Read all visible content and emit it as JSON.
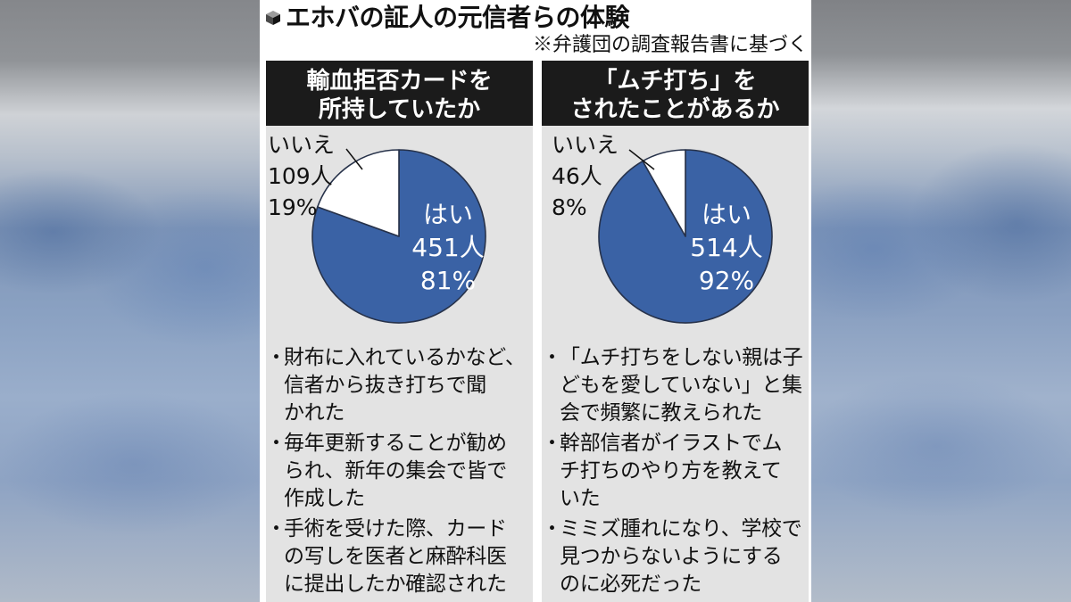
{
  "header": {
    "icon": "cube-icon",
    "title": "エホバの証人の元信者らの体験",
    "source_note": "※弁護団の調査報告書に基づく"
  },
  "colors": {
    "column_header_bg": "#1b1b1b",
    "column_bg": "#e3e3e3",
    "slice_outline": "#27324a"
  },
  "columns": [
    {
      "bullet_marker": "・",
      "bullets": [
        {
          "lines": [
            "財布に入れているかなど、",
            "信者から抜き打ちで聞",
            "かれた"
          ]
        },
        {
          "lines": [
            "毎年更新することが勧め",
            "られ、新年の集会で皆で",
            "作成した"
          ]
        },
        {
          "lines": [
            "手術を受けた際、カード",
            "の写しを医者と麻酔科医",
            "に提出したか確認された"
          ]
        }
      ]
    },
    {
      "bullet_marker": "・",
      "bullets": [
        {
          "lines": [
            "「ムチ打ちをしない親は子",
            "どもを愛していない」と集",
            "会で頻繁に教えられた"
          ]
        },
        {
          "lines": [
            "幹部信者がイラストでム",
            "チ打ちのやり方を教えて",
            "いた"
          ]
        },
        {
          "lines": [
            "ミミズ腫れになり、学校で",
            "見つからないようにする",
            "のに必死だった"
          ]
        }
      ]
    }
  ],
  "chart_data": [
    {
      "type": "pie",
      "title": "輸血拒否カードを\n所持していたか",
      "slices": [
        {
          "label": "はい",
          "value": 451,
          "value_label": "451人",
          "percent": 81,
          "percent_label": "81%",
          "color": "#3a62a5"
        },
        {
          "label": "いいえ",
          "value": 109,
          "value_label": "109人",
          "percent": 19,
          "percent_label": "19%",
          "color": "#ffffff"
        }
      ]
    },
    {
      "type": "pie",
      "title": "「ムチ打ち」を\nされたことがあるか",
      "slices": [
        {
          "label": "はい",
          "value": 514,
          "value_label": "514人",
          "percent": 92,
          "percent_label": "92%",
          "color": "#3a62a5"
        },
        {
          "label": "いいえ",
          "value": 46,
          "value_label": "46人",
          "percent": 8,
          "percent_label": "8%",
          "color": "#ffffff"
        }
      ]
    }
  ]
}
